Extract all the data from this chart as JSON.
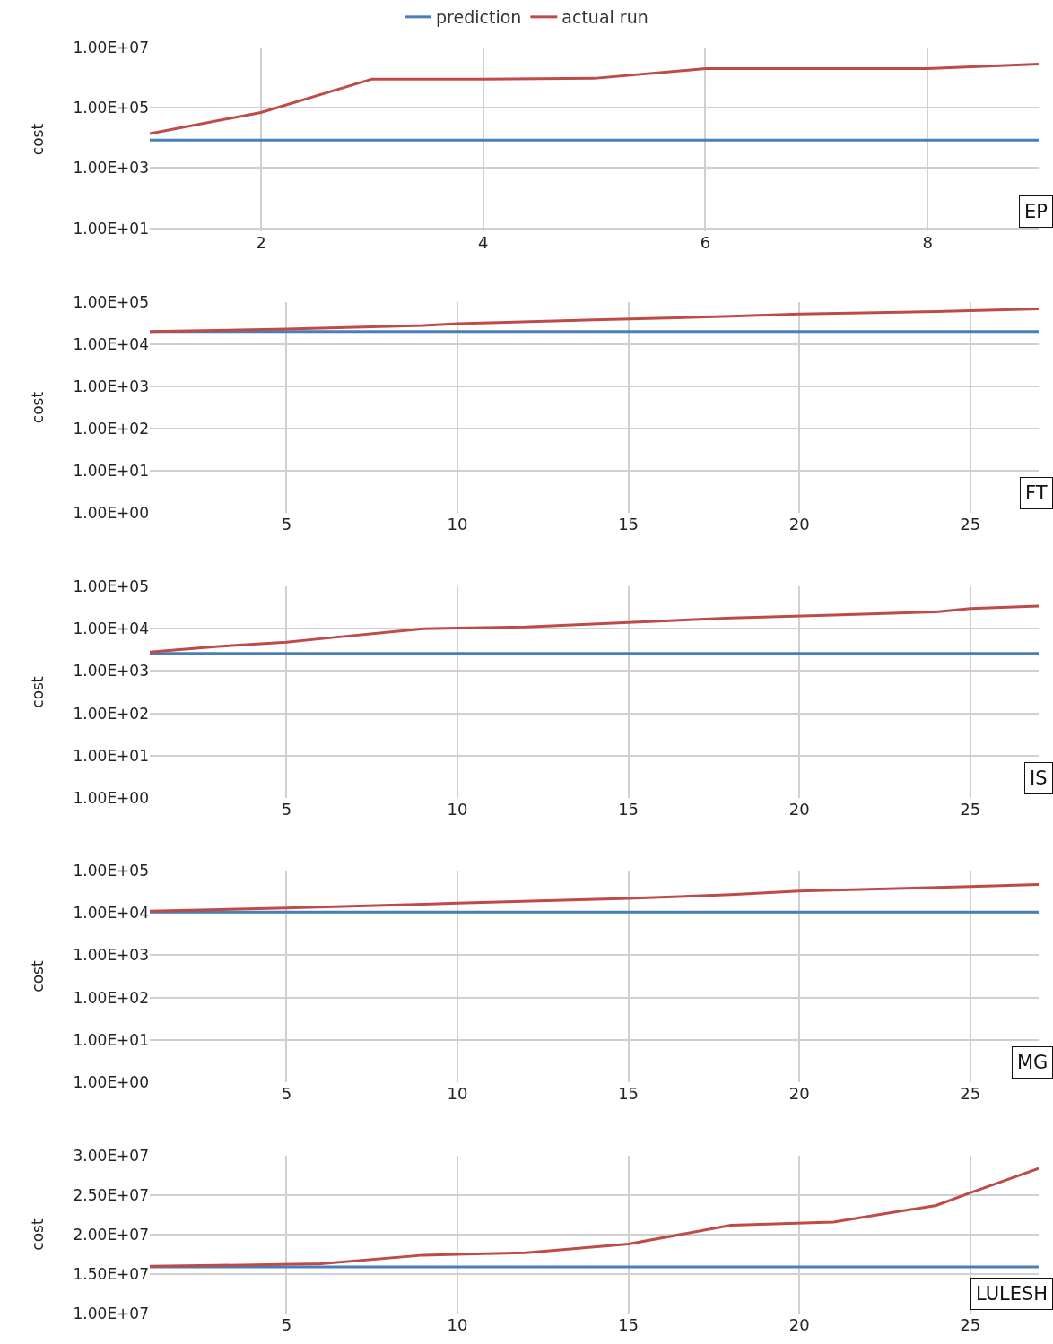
{
  "chart_data": [
    {
      "type": "line",
      "ylabel": "cost",
      "annotations": [
        "EP"
      ],
      "legend": "top",
      "grid": true,
      "log": "y",
      "line_style": "solid",
      "marker": "none",
      "xlim": [
        1,
        9
      ],
      "xticks": [
        2,
        4,
        6,
        8
      ],
      "ylim": [
        8,
        10000000
      ],
      "yticks": [
        {
          "value": 10,
          "label": "1.00E+01"
        },
        {
          "value": 1000,
          "label": "1.00E+03"
        },
        {
          "value": 100000,
          "label": "1.00E+05"
        },
        {
          "value": 10000000,
          "label": "1.00E+07"
        }
      ],
      "series": [
        {
          "name": "prediction",
          "color": "#4a7ebb",
          "x": [
            1,
            9
          ],
          "values": [
            8500,
            8500
          ]
        },
        {
          "name": "actual run",
          "color": "#be4b48",
          "x": [
            1,
            2,
            3,
            4,
            5,
            6,
            7,
            8,
            9
          ],
          "values": [
            14000,
            70000,
            900000,
            900000,
            950000,
            2000000,
            2000000,
            2000000,
            2800000
          ]
        }
      ]
    },
    {
      "type": "line",
      "ylabel": "cost",
      "annotations": [
        "FT"
      ],
      "grid": true,
      "log": "y",
      "line_style": "solid",
      "marker": "none",
      "xlim": [
        1,
        27
      ],
      "xticks": [
        5,
        10,
        15,
        20,
        25
      ],
      "ylim": [
        1,
        100000
      ],
      "yticks": [
        {
          "value": 1,
          "label": "1.00E+00"
        },
        {
          "value": 10,
          "label": "1.00E+01"
        },
        {
          "value": 100,
          "label": "1.00E+02"
        },
        {
          "value": 1000,
          "label": "1.00E+03"
        },
        {
          "value": 10000,
          "label": "1.00E+04"
        },
        {
          "value": 100000,
          "label": "1.00E+05"
        }
      ],
      "series": [
        {
          "color": "#4a7ebb",
          "x": [
            1,
            27
          ],
          "values": [
            20000,
            20000
          ]
        },
        {
          "color": "#be4b48",
          "x": [
            1,
            5,
            9,
            10,
            14,
            18,
            20,
            24,
            27
          ],
          "values": [
            20000,
            23000,
            28000,
            31000,
            38000,
            46000,
            52000,
            60000,
            69000
          ]
        }
      ]
    },
    {
      "type": "line",
      "ylabel": "cost",
      "annotations": [
        "IS"
      ],
      "grid": true,
      "log": "y",
      "line_style": "solid",
      "marker": "none",
      "xlim": [
        1,
        27
      ],
      "xticks": [
        5,
        10,
        15,
        20,
        25
      ],
      "ylim": [
        1,
        100000
      ],
      "yticks": [
        {
          "value": 1,
          "label": "1.00E+00"
        },
        {
          "value": 10,
          "label": "1.00E+01"
        },
        {
          "value": 100,
          "label": "1.00E+02"
        },
        {
          "value": 1000,
          "label": "1.00E+03"
        },
        {
          "value": 10000,
          "label": "1.00E+04"
        },
        {
          "value": 100000,
          "label": "1.00E+05"
        }
      ],
      "series": [
        {
          "color": "#4a7ebb",
          "x": [
            1,
            27
          ],
          "values": [
            2600,
            2600
          ]
        },
        {
          "color": "#be4b48",
          "x": [
            1,
            3,
            5,
            6,
            9,
            12,
            15,
            18,
            21,
            24,
            25,
            27
          ],
          "values": [
            2800,
            3800,
            4800,
            5800,
            10000,
            11000,
            14000,
            18000,
            21000,
            25000,
            30000,
            34000
          ]
        }
      ]
    },
    {
      "type": "line",
      "ylabel": "cost",
      "annotations": [
        "MG"
      ],
      "grid": true,
      "log": "y",
      "line_style": "solid",
      "marker": "none",
      "xlim": [
        1,
        27
      ],
      "xticks": [
        5,
        10,
        15,
        20,
        25
      ],
      "ylim": [
        1,
        100000
      ],
      "yticks": [
        {
          "value": 1,
          "label": "1.00E+00"
        },
        {
          "value": 10,
          "label": "1.00E+01"
        },
        {
          "value": 100,
          "label": "1.00E+02"
        },
        {
          "value": 1000,
          "label": "1.00E+03"
        },
        {
          "value": 10000,
          "label": "1.00E+04"
        },
        {
          "value": 100000,
          "label": "1.00E+05"
        }
      ],
      "series": [
        {
          "color": "#4a7ebb",
          "x": [
            1,
            27
          ],
          "values": [
            10500,
            10500
          ]
        },
        {
          "color": "#be4b48",
          "x": [
            1,
            5,
            9,
            10,
            15,
            18,
            20,
            25,
            27
          ],
          "values": [
            11000,
            13000,
            16000,
            17000,
            22000,
            27000,
            33000,
            42000,
            47000
          ]
        }
      ]
    },
    {
      "type": "line",
      "ylabel": "cost",
      "annotations": [
        "LULESH"
      ],
      "grid": true,
      "line_style": "solid",
      "marker": "none",
      "xlim": [
        1,
        27
      ],
      "xticks": [
        5,
        10,
        15,
        20,
        25
      ],
      "ylim": [
        10000000,
        30000000
      ],
      "yticks": [
        {
          "value": 10000000,
          "label": "1.00E+07"
        },
        {
          "value": 15000000,
          "label": "1.50E+07"
        },
        {
          "value": 20000000,
          "label": "2.00E+07"
        },
        {
          "value": 25000000,
          "label": "2.50E+07"
        },
        {
          "value": 30000000,
          "label": "3.00E+07"
        }
      ],
      "series": [
        {
          "color": "#4a7ebb",
          "x": [
            1,
            27
          ],
          "values": [
            15900000,
            15900000
          ]
        },
        {
          "color": "#be4b48",
          "x": [
            1,
            3,
            6,
            9,
            12,
            15,
            18,
            21,
            24,
            25,
            27
          ],
          "values": [
            16000000,
            16100000,
            16300000,
            17400000,
            17700000,
            18800000,
            21200000,
            21600000,
            23700000,
            25300000,
            28400000
          ]
        }
      ]
    }
  ]
}
